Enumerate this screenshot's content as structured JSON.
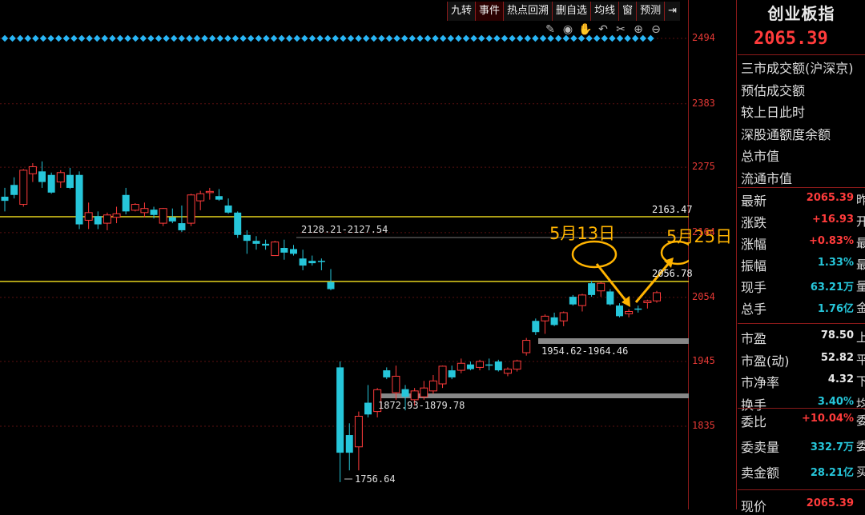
{
  "toolbar": {
    "items": [
      "九转",
      "事件",
      "热点回溯",
      "删自选",
      "均线",
      "窗",
      "预测"
    ]
  },
  "tools": [
    "pen-icon",
    "eye-icon",
    "hand-icon",
    "undo-icon",
    "scissors-icon",
    "zoom-in-icon",
    "zoom-out-icon"
  ],
  "axis_ticks": [
    "2494",
    "2383",
    "2275",
    "2164",
    "2054",
    "1945",
    "1835"
  ],
  "annotations": {
    "level_2163": "2163.47",
    "level_2056": "2056.78",
    "range_upper": "2128.21-2127.54",
    "range_mid": "1954.62-1964.46",
    "range_low": "1872.93-1879.78",
    "low_label": "1756.64",
    "may13": "5月13日",
    "may25": "5月25日"
  },
  "panel": {
    "title": "创业板指",
    "price": "2065.39",
    "rows_top": [
      "三市成交额(沪深京)",
      "预估成交额",
      "较上日此时",
      "深股通额度余额",
      "总市值",
      "流通市值"
    ],
    "quote": [
      {
        "label": "最新",
        "value": "2065.39",
        "suffix": "昨",
        "color": "#ff3b3b"
      },
      {
        "label": "涨跌",
        "value": "+16.93",
        "suffix": "开",
        "color": "#ff3b3b"
      },
      {
        "label": "涨幅",
        "value": "+0.83%",
        "suffix": "最",
        "color": "#ff3b3b"
      },
      {
        "label": "振幅",
        "value": "1.33%",
        "suffix": "最",
        "color": "#26c6da"
      },
      {
        "label": "现手",
        "value": "63.21万",
        "suffix": "量",
        "color": "#26c6da"
      },
      {
        "label": "总手",
        "value": "1.76亿",
        "suffix": "金",
        "color": "#26c6da"
      }
    ],
    "valuation": [
      {
        "label": "市盈",
        "value": "78.50",
        "suffix": "上",
        "color": "#e8e8e8"
      },
      {
        "label": "市盈(动)",
        "value": "52.82",
        "suffix": "平",
        "color": "#e8e8e8"
      },
      {
        "label": "市净率",
        "value": "4.32",
        "suffix": "下",
        "color": "#e8e8e8"
      },
      {
        "label": "换手",
        "value": "3.40%",
        "suffix": "均",
        "color": "#26c6da"
      }
    ],
    "orders": [
      {
        "label": "委比",
        "value": "+10.04%",
        "suffix": "委",
        "color": "#ff3b3b"
      },
      {
        "label": "委卖量",
        "value": "332.7万",
        "suffix": "委",
        "color": "#26c6da"
      },
      {
        "label": "卖金额",
        "value": "28.21亿",
        "suffix": "买",
        "color": "#26c6da"
      }
    ],
    "bottom": {
      "label": "现价",
      "value": "2065.39"
    }
  },
  "chart_data": {
    "type": "candlestick",
    "y_axis_ticks": [
      2494,
      2383,
      2275,
      2164,
      2054,
      1945,
      1835
    ],
    "horizontal_levels": [
      2163.47,
      2056.78
    ],
    "range_bands": [
      "2128.21-2127.54",
      "1954.62-1964.46",
      "1872.93-1879.78"
    ],
    "low": 1756.64,
    "colors": {
      "up": "#ff3b3b",
      "down": "#26c6da",
      "level": "#e6d21e",
      "annotation": "#ffb300",
      "signal": "#29b6f6"
    },
    "candles": [
      [
        2225,
        2240,
        2200,
        2218
      ],
      [
        2245,
        2258,
        2222,
        2228
      ],
      [
        2212,
        2272,
        2208,
        2270
      ],
      [
        2264,
        2282,
        2250,
        2276
      ],
      [
        2268,
        2285,
        2240,
        2250
      ],
      [
        2262,
        2266,
        2230,
        2232
      ],
      [
        2250,
        2270,
        2240,
        2266
      ],
      [
        2262,
        2274,
        2238,
        2240
      ],
      [
        2262,
        2268,
        2170,
        2178
      ],
      [
        2185,
        2215,
        2170,
        2198
      ],
      [
        2192,
        2200,
        2170,
        2178
      ],
      [
        2180,
        2198,
        2168,
        2194
      ],
      [
        2190,
        2208,
        2180,
        2196
      ],
      [
        2228,
        2240,
        2195,
        2200
      ],
      [
        2202,
        2214,
        2200,
        2212
      ],
      [
        2198,
        2215,
        2190,
        2205
      ],
      [
        2203,
        2208,
        2188,
        2194
      ],
      [
        2180,
        2206,
        2175,
        2205
      ],
      [
        2190,
        2205,
        2180,
        2183
      ],
      [
        2180,
        2210,
        2165,
        2168
      ],
      [
        2180,
        2230,
        2175,
        2228
      ],
      [
        2218,
        2235,
        2202,
        2230
      ],
      [
        2232,
        2240,
        2220,
        2234
      ],
      [
        2226,
        2238,
        2218,
        2220
      ],
      [
        2210,
        2222,
        2196,
        2198
      ],
      [
        2198,
        2200,
        2155,
        2160
      ],
      [
        2160,
        2168,
        2128,
        2150
      ],
      [
        2150,
        2158,
        2135,
        2145
      ],
      [
        2145,
        2152,
        2135,
        2142
      ],
      [
        2125,
        2150,
        2125,
        2148
      ],
      [
        2138,
        2152,
        2118,
        2130
      ],
      [
        2136,
        2143,
        2125,
        2128
      ],
      [
        2120,
        2135,
        2100,
        2108
      ],
      [
        2116,
        2125,
        2108,
        2112
      ],
      [
        2116,
        2120,
        2100,
        2114
      ],
      [
        2080,
        2102,
        2066,
        2068
      ],
      [
        1935,
        1945,
        1740,
        1790
      ],
      [
        1820,
        1840,
        1760,
        1790
      ],
      [
        1800,
        1860,
        1760,
        1852
      ],
      [
        1875,
        1905,
        1850,
        1855
      ],
      [
        1860,
        1900,
        1850,
        1897
      ],
      [
        1930,
        1935,
        1915,
        1918
      ],
      [
        1892,
        1938,
        1880,
        1920
      ],
      [
        1898,
        1905,
        1862,
        1885
      ],
      [
        1880,
        1900,
        1870,
        1895
      ],
      [
        1885,
        1912,
        1880,
        1900
      ],
      [
        1895,
        1922,
        1890,
        1912
      ],
      [
        1907,
        1938,
        1900,
        1937
      ],
      [
        1930,
        1938,
        1915,
        1918
      ],
      [
        1930,
        1950,
        1925,
        1942
      ],
      [
        1940,
        1945,
        1930,
        1932
      ],
      [
        1935,
        1948,
        1930,
        1945
      ],
      [
        1940,
        1950,
        1930,
        1938
      ],
      [
        1945,
        1948,
        1928,
        1930
      ],
      [
        1925,
        1935,
        1920,
        1932
      ],
      [
        1932,
        1948,
        1928,
        1946
      ],
      [
        1960,
        1985,
        1955,
        1981
      ],
      [
        2014,
        2018,
        1990,
        1995
      ],
      [
        2014,
        2025,
        1992,
        2022
      ],
      [
        2020,
        2028,
        2005,
        2007
      ],
      [
        2014,
        2030,
        2005,
        2028
      ],
      [
        2055,
        2058,
        2040,
        2042
      ],
      [
        2040,
        2060,
        2030,
        2058
      ],
      [
        2078,
        2082,
        2055,
        2058
      ],
      [
        2065,
        2080,
        2055,
        2078
      ],
      [
        2064,
        2068,
        2040,
        2042
      ],
      [
        2040,
        2044,
        2020,
        2022
      ],
      [
        2026,
        2034,
        2020,
        2030
      ],
      [
        2035,
        2040,
        2028,
        2033
      ],
      [
        2045,
        2050,
        2035,
        2048
      ],
      [
        2048,
        2065,
        2045,
        2062
      ]
    ]
  }
}
